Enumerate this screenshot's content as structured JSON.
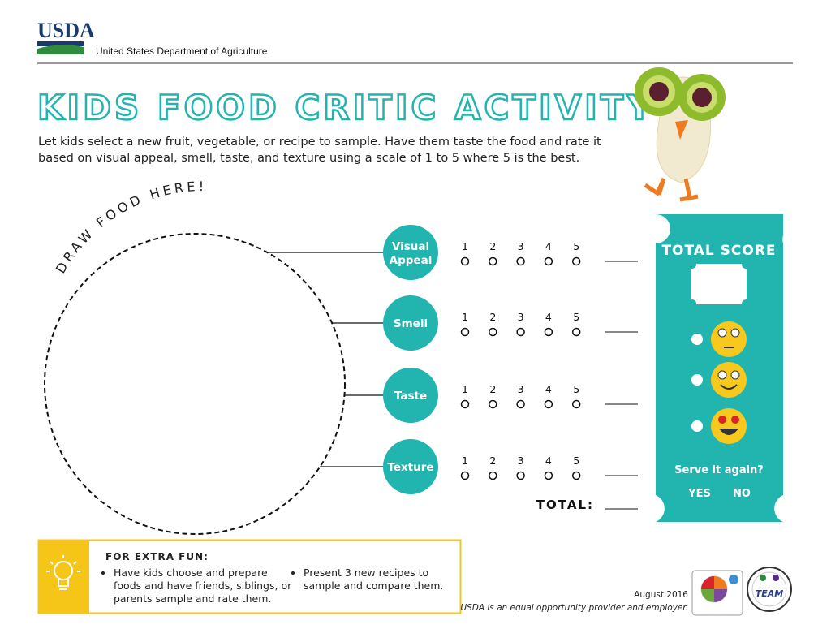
{
  "header": {
    "logo": "USDA",
    "agency": "United States Department of Agriculture"
  },
  "title": "KIDS FOOD CRITIC ACTIVITY",
  "intro": "Let kids select a new fruit, vegetable, or recipe to sample. Have them taste the food and rate it based on visual appeal, smell, taste, and texture using a scale of 1 to 5 where 5 is the best.",
  "draw_label": "DRAW FOOD HERE!",
  "criteria": [
    "Visual Appeal",
    "Smell",
    "Taste",
    "Texture"
  ],
  "scale": [
    "1",
    "2",
    "3",
    "4",
    "5"
  ],
  "total_label": "TOTAL:",
  "score_card": {
    "title": "TOTAL SCORE",
    "question": "Serve it again?",
    "options": [
      "YES",
      "NO"
    ]
  },
  "extra_fun": {
    "title": "FOR EXTRA FUN:",
    "items": [
      "Have kids choose and prepare foods and have friends, siblings, or parents sample and rate them.",
      "Present 3 new recipes to sample and compare them."
    ]
  },
  "footer": {
    "date": "August 2016",
    "statement": "USDA is an equal opportunity provider and employer.",
    "team_logo": "TEAM"
  }
}
